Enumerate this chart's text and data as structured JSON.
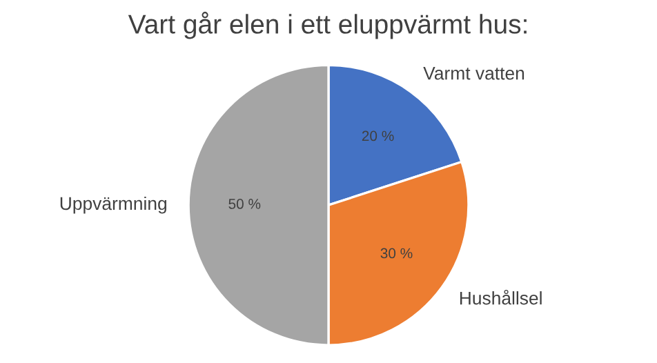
{
  "chart_data": {
    "type": "pie",
    "title": "Vart går elen i ett eluppvärmt hus:",
    "categories": [
      "Varmt vatten",
      "Hushållsel",
      "Uppvärmning"
    ],
    "values": [
      20,
      30,
      50
    ],
    "colors": [
      "#4472c4",
      "#ed7d31",
      "#a5a5a5"
    ],
    "value_labels": [
      "20 %",
      "30 %",
      "50 %"
    ],
    "legend": false
  }
}
